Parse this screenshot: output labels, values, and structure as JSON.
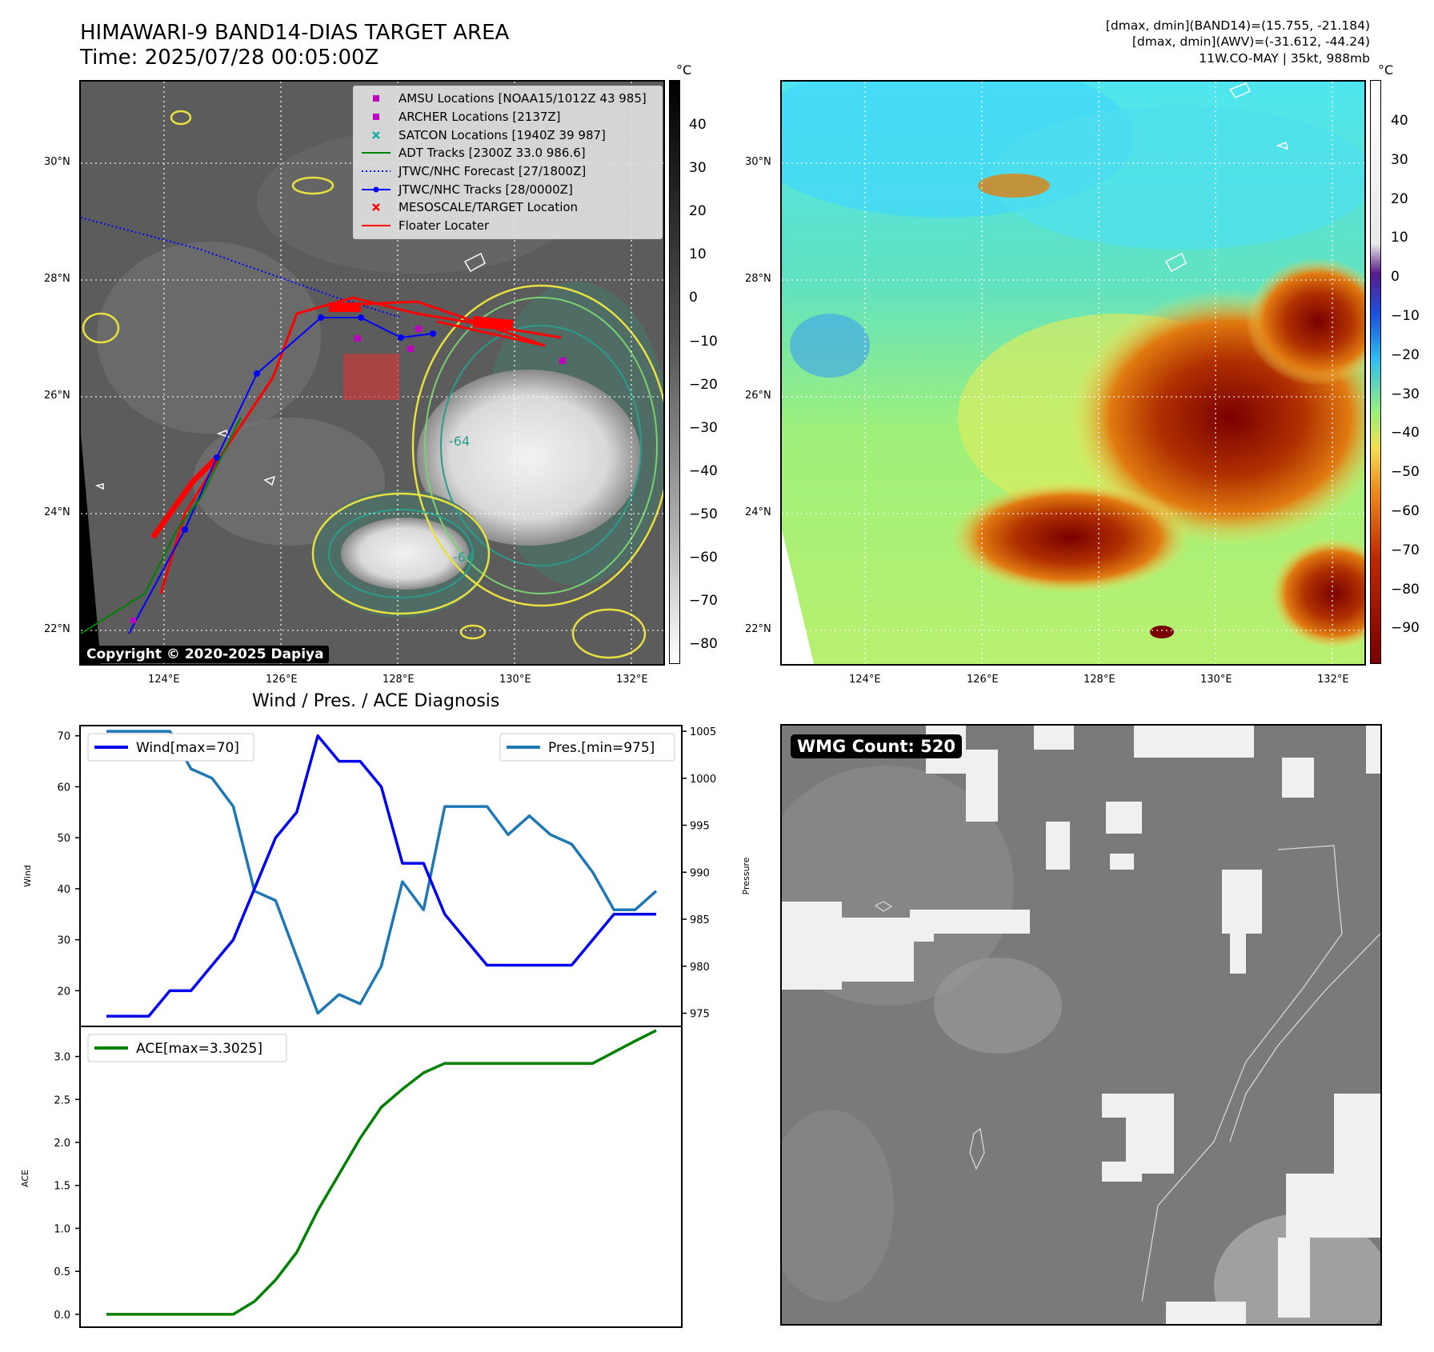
{
  "header": {
    "title_line1": "HIMAWARI-9 BAND14-DIAS TARGET AREA",
    "title_line2": "Time: 2025/07/28 00:05:00Z",
    "stats_line1": "[dmax, dmin](BAND14)=(15.755, -21.184)",
    "stats_line2": "[dmax, dmin](AWV)=(-31.612, -44.24)",
    "stats_line3": "11W.CO-MAY | 35kt, 988mb"
  },
  "map_panel": {
    "unit": "°C",
    "lat_labels": [
      "30°N",
      "28°N",
      "26°N",
      "24°N",
      "22°N"
    ],
    "lon_labels": [
      "124°E",
      "126°E",
      "128°E",
      "130°E",
      "132°E"
    ],
    "colorbar_left_ticks": [
      "40",
      "30",
      "20",
      "10",
      "0",
      "−10",
      "−20",
      "−30",
      "−40",
      "−50",
      "−60",
      "−70",
      "−80"
    ],
    "colorbar_right_ticks": [
      "40",
      "30",
      "20",
      "10",
      "0",
      "−10",
      "−20",
      "−30",
      "−40",
      "−50",
      "−60",
      "−70",
      "−80",
      "−90"
    ],
    "contour_label": "-64",
    "copyright": "Copyright © 2020-2025 Dapiya",
    "legend": [
      {
        "label": "AMSU Locations [NOAA15/1012Z 43 985]",
        "marker": "square",
        "color": "#c000c0"
      },
      {
        "label": "ARCHER Locations [2137Z]",
        "marker": "square",
        "color": "#c000c0"
      },
      {
        "label": "SATCON Locations [1940Z 39 987]",
        "marker": "x",
        "color": "#10b0a8"
      },
      {
        "label": "ADT Tracks [2300Z 33.0 986.6]",
        "marker": "line",
        "color": "#008000"
      },
      {
        "label": "JTWC/NHC Forecast [27/1800Z]",
        "marker": "dotted",
        "color": "#0000ff"
      },
      {
        "label": "JTWC/NHC Tracks [28/0000Z]",
        "marker": "line-dot",
        "color": "#0000ff"
      },
      {
        "label": "MESOSCALE/TARGET Location",
        "marker": "x",
        "color": "#ff0000"
      },
      {
        "label": "Floater Locater",
        "marker": "line",
        "color": "#ff0000"
      }
    ]
  },
  "wind_chart_title": "Wind / Pres. / ACE Diagnosis",
  "wmg": {
    "label": "WMG Count: 520"
  },
  "chart_data": [
    {
      "type": "line",
      "title": "Wind / Pres. / ACE Diagnosis",
      "ylabel": "Wind",
      "ylabel_right": "Pressure",
      "ylim": [
        13,
        72
      ],
      "ylim_right": [
        973.6,
        1005.6
      ],
      "yticks": [
        20,
        30,
        40,
        50,
        60,
        70
      ],
      "yticks_right": [
        975,
        980,
        985,
        990,
        995,
        1000,
        1005
      ],
      "series": [
        {
          "name": "Wind[max=70]",
          "axis": "left",
          "color": "#0000ee",
          "values": [
            15,
            15,
            15,
            20,
            20,
            25,
            30,
            40,
            50,
            55,
            70,
            65,
            65,
            60,
            45,
            45,
            35,
            30,
            25,
            25,
            25,
            25,
            25,
            30,
            35,
            35,
            35
          ]
        },
        {
          "name": "Pres.[min=975]",
          "axis": "right",
          "color": "#1f77b4",
          "values": [
            1005,
            1005,
            1005,
            1005,
            1001,
            1000,
            997,
            988,
            987,
            981,
            975,
            977,
            976,
            980,
            989,
            986,
            997,
            997,
            997,
            994,
            996,
            994,
            993,
            990,
            986,
            986,
            988
          ]
        }
      ]
    },
    {
      "type": "line",
      "ylabel": "ACE",
      "ylim": [
        -0.15,
        3.35
      ],
      "yticks": [
        "0.0",
        "0.5",
        "1.0",
        "1.5",
        "2.0",
        "2.5",
        "3.0"
      ],
      "series": [
        {
          "name": "ACE[max=3.3025]",
          "color": "#008000",
          "values": [
            0,
            0,
            0,
            0,
            0,
            0,
            0,
            0.15,
            0.4,
            0.72,
            1.21,
            1.63,
            2.05,
            2.41,
            2.62,
            2.81,
            2.92,
            2.92,
            2.92,
            2.92,
            2.92,
            2.92,
            2.92,
            2.92,
            3.05,
            3.18,
            3.3025
          ]
        }
      ]
    }
  ]
}
